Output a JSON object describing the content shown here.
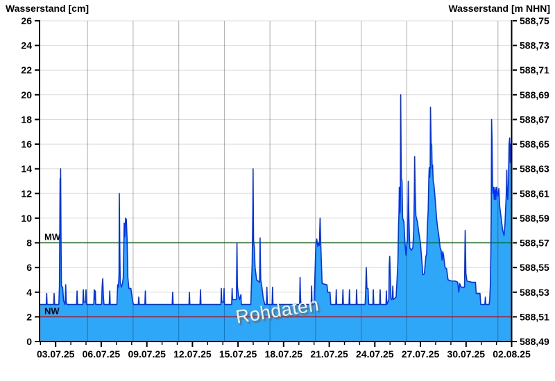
{
  "header": {
    "title_left": "Wasserstand [cm]",
    "title_right": "Wasserstand [m NHN]"
  },
  "watermark": "Rohdaten",
  "chart_data": {
    "type": "area",
    "title": "Wasserstand Rohdaten",
    "xlabel": "",
    "ylabel_left": "Wasserstand [cm]",
    "ylabel_right": "Wasserstand [m NHN]",
    "grid": true,
    "x_axis": {
      "tick_labels": [
        "03.07.25",
        "06.07.25",
        "09.07.25",
        "12.07.25",
        "15.07.25",
        "18.07.25",
        "21.07.25",
        "24.07.25",
        "27.07.25",
        "30.07.25",
        "02.08.25"
      ],
      "tick_days": [
        0,
        3,
        6,
        9,
        12,
        15,
        18,
        21,
        24,
        27,
        30
      ],
      "minor_tick_interval_days": 1,
      "range_days": [
        -1.03,
        30.0
      ],
      "gridline_days": [
        2.1,
        5.1,
        8.1,
        11.1,
        14.1,
        17.1,
        20.1,
        23.1,
        26.1,
        29.1
      ]
    },
    "y_axis_left": {
      "unit": "cm",
      "min": 0,
      "max": 26,
      "tick_step": 2,
      "tick_labels": [
        "26",
        "24",
        "22",
        "20",
        "18",
        "16",
        "14",
        "12",
        "10",
        "8",
        "6",
        "4",
        "2",
        "0"
      ]
    },
    "y_axis_right": {
      "unit": "m NHN",
      "min_m": 588.49,
      "max_m": 588.75,
      "tick_labels": [
        "588,75",
        "588,73",
        "588,71",
        "588,69",
        "588,67",
        "588,65",
        "588,63",
        "588,61",
        "588,59",
        "588,57",
        "588,55",
        "588,53",
        "588,51",
        "588,49"
      ]
    },
    "reference_lines": [
      {
        "name": "MW",
        "value_cm": 8,
        "color": "#007a00"
      },
      {
        "name": "NW",
        "value_cm": 2,
        "color": "#d40000"
      }
    ],
    "series": [
      {
        "name": "Rohdaten",
        "unit": "cm",
        "points": [
          [
            -1.03,
            3
          ],
          [
            -0.62,
            3
          ],
          [
            -0.59,
            3.9
          ],
          [
            -0.56,
            3
          ],
          [
            -0.13,
            3
          ],
          [
            -0.1,
            3.9
          ],
          [
            -0.07,
            3
          ],
          [
            0.21,
            3
          ],
          [
            0.25,
            4.5
          ],
          [
            0.29,
            13.2
          ],
          [
            0.31,
            10.5
          ],
          [
            0.33,
            14
          ],
          [
            0.35,
            9
          ],
          [
            0.38,
            4.5
          ],
          [
            0.46,
            4.4
          ],
          [
            0.52,
            3.3
          ],
          [
            0.62,
            3
          ],
          [
            0.66,
            4.6
          ],
          [
            0.7,
            3.2
          ],
          [
            0.75,
            3
          ],
          [
            1.38,
            3
          ],
          [
            1.41,
            4.1
          ],
          [
            1.44,
            3
          ],
          [
            1.79,
            3
          ],
          [
            1.82,
            4.2
          ],
          [
            1.85,
            3.2
          ],
          [
            1.96,
            3.2
          ],
          [
            2,
            4.2
          ],
          [
            2.03,
            3
          ],
          [
            2.51,
            3
          ],
          [
            2.54,
            4.2
          ],
          [
            2.57,
            3.4
          ],
          [
            2.61,
            4.1
          ],
          [
            2.64,
            3
          ],
          [
            3.02,
            3
          ],
          [
            3.06,
            4.4
          ],
          [
            3.1,
            5.1
          ],
          [
            3.14,
            3.7
          ],
          [
            3.18,
            3
          ],
          [
            3.53,
            3
          ],
          [
            3.56,
            4.1
          ],
          [
            3.59,
            3
          ],
          [
            4.03,
            3
          ],
          [
            4.08,
            4.6
          ],
          [
            4.13,
            4.4
          ],
          [
            4.17,
            5.5
          ],
          [
            4.19,
            12
          ],
          [
            4.22,
            7.5
          ],
          [
            4.25,
            4.8
          ],
          [
            4.32,
            4.4
          ],
          [
            4.4,
            4.7
          ],
          [
            4.45,
            5.2
          ],
          [
            4.51,
            9.6
          ],
          [
            4.55,
            8.5
          ],
          [
            4.6,
            10
          ],
          [
            4.65,
            9.9
          ],
          [
            4.7,
            8.3
          ],
          [
            4.75,
            5.2
          ],
          [
            4.82,
            4.3
          ],
          [
            4.95,
            4.3
          ],
          [
            5.05,
            3.4
          ],
          [
            5.12,
            3
          ],
          [
            5.44,
            3
          ],
          [
            5.47,
            3.6
          ],
          [
            5.5,
            3
          ],
          [
            5.87,
            3
          ],
          [
            5.9,
            4.1
          ],
          [
            5.93,
            3
          ],
          [
            7.67,
            3
          ],
          [
            7.7,
            4
          ],
          [
            7.73,
            3
          ],
          [
            8.77,
            3
          ],
          [
            8.8,
            4
          ],
          [
            8.83,
            3
          ],
          [
            9.5,
            3
          ],
          [
            9.53,
            4.2
          ],
          [
            9.56,
            3
          ],
          [
            10.87,
            3
          ],
          [
            10.9,
            4.3
          ],
          [
            10.93,
            3.2
          ],
          [
            11.05,
            3.2
          ],
          [
            11.08,
            4.3
          ],
          [
            11.11,
            3
          ],
          [
            11.58,
            3
          ],
          [
            11.61,
            4.3
          ],
          [
            11.64,
            3.4
          ],
          [
            11.89,
            3.4
          ],
          [
            11.93,
            8
          ],
          [
            11.96,
            4.5
          ],
          [
            12.02,
            3.8
          ],
          [
            12.1,
            3.4
          ],
          [
            12.19,
            3.8
          ],
          [
            12.22,
            3
          ],
          [
            12.84,
            3
          ],
          [
            12.88,
            4.5
          ],
          [
            12.93,
            6.3
          ],
          [
            12.97,
            10.5
          ],
          [
            12.99,
            14
          ],
          [
            13.02,
            8.2
          ],
          [
            13.07,
            7.6
          ],
          [
            13.12,
            6
          ],
          [
            13.22,
            5
          ],
          [
            13.42,
            4.8
          ],
          [
            13.45,
            8.4
          ],
          [
            13.49,
            5
          ],
          [
            13.56,
            4.5
          ],
          [
            13.66,
            3.5
          ],
          [
            13.76,
            3
          ],
          [
            13.87,
            3
          ],
          [
            13.9,
            4.4
          ],
          [
            13.93,
            3
          ],
          [
            14.24,
            3
          ],
          [
            14.27,
            4.4
          ],
          [
            14.3,
            3
          ],
          [
            16.05,
            3
          ],
          [
            16.08,
            5.2
          ],
          [
            16.11,
            3.6
          ],
          [
            16.14,
            3
          ],
          [
            16.81,
            3
          ],
          [
            16.84,
            4.5
          ],
          [
            16.87,
            3
          ],
          [
            16.99,
            3
          ],
          [
            17.04,
            4.5
          ],
          [
            17.12,
            7.9
          ],
          [
            17.18,
            8.3
          ],
          [
            17.25,
            7.7
          ],
          [
            17.3,
            8
          ],
          [
            17.35,
            7.8
          ],
          [
            17.4,
            10
          ],
          [
            17.44,
            8
          ],
          [
            17.48,
            6.5
          ],
          [
            17.53,
            4.7
          ],
          [
            17.85,
            4.6
          ],
          [
            17.9,
            4
          ],
          [
            18.05,
            4
          ],
          [
            18.1,
            3
          ],
          [
            18.43,
            3
          ],
          [
            18.46,
            4.2
          ],
          [
            18.49,
            3
          ],
          [
            18.87,
            3
          ],
          [
            18.9,
            4.2
          ],
          [
            18.93,
            3
          ],
          [
            19.3,
            3
          ],
          [
            19.33,
            4.2
          ],
          [
            19.36,
            3
          ],
          [
            19.77,
            3
          ],
          [
            19.8,
            4.2
          ],
          [
            19.83,
            3
          ],
          [
            20.36,
            3
          ],
          [
            20.4,
            4.3
          ],
          [
            20.44,
            6
          ],
          [
            20.48,
            4.3
          ],
          [
            20.55,
            4.3
          ],
          [
            20.6,
            3
          ],
          [
            20.87,
            3
          ],
          [
            20.9,
            4.2
          ],
          [
            20.93,
            3
          ],
          [
            21.32,
            3
          ],
          [
            21.35,
            4.2
          ],
          [
            21.38,
            3
          ],
          [
            21.73,
            3
          ],
          [
            21.76,
            4.1
          ],
          [
            21.79,
            3
          ],
          [
            21.92,
            3.4
          ],
          [
            21.95,
            6.2
          ],
          [
            21.98,
            6.9
          ],
          [
            22.02,
            5
          ],
          [
            22.06,
            3.5
          ],
          [
            22.1,
            3.4
          ],
          [
            22.15,
            3.5
          ],
          [
            22.18,
            4.5
          ],
          [
            22.21,
            3.4
          ],
          [
            22.3,
            3.5
          ],
          [
            22.4,
            3.6
          ],
          [
            22.46,
            5
          ],
          [
            22.52,
            6.5
          ],
          [
            22.56,
            9.5
          ],
          [
            22.59,
            10.4
          ],
          [
            22.61,
            12.5
          ],
          [
            22.63,
            10.4
          ],
          [
            22.66,
            10.5
          ],
          [
            22.68,
            12
          ],
          [
            22.7,
            20
          ],
          [
            22.74,
            13.2
          ],
          [
            22.79,
            13
          ],
          [
            22.83,
            10
          ],
          [
            22.91,
            9.7
          ],
          [
            22.98,
            8
          ],
          [
            23.05,
            7
          ],
          [
            23.1,
            7.9
          ],
          [
            23.16,
            8.2
          ],
          [
            23.2,
            13
          ],
          [
            23.24,
            10
          ],
          [
            23.3,
            7.6
          ],
          [
            23.4,
            7.4
          ],
          [
            23.5,
            7.6
          ],
          [
            23.56,
            9
          ],
          [
            23.6,
            12.2
          ],
          [
            23.62,
            15
          ],
          [
            23.65,
            12.3
          ],
          [
            23.7,
            10.2
          ],
          [
            23.8,
            9.7
          ],
          [
            23.9,
            8.8
          ],
          [
            24,
            8
          ],
          [
            24.06,
            7
          ],
          [
            24.11,
            6.2
          ],
          [
            24.16,
            5.4
          ],
          [
            24.26,
            5.5
          ],
          [
            24.31,
            6.2
          ],
          [
            24.36,
            6.9
          ],
          [
            24.41,
            7.1
          ],
          [
            24.46,
            9.4
          ],
          [
            24.51,
            10.6
          ],
          [
            24.55,
            13.2
          ],
          [
            24.58,
            14.1
          ],
          [
            24.61,
            13.3
          ],
          [
            24.64,
            14.2
          ],
          [
            24.66,
            19
          ],
          [
            24.7,
            16.1
          ],
          [
            24.74,
            15.9
          ],
          [
            24.77,
            14
          ],
          [
            24.8,
            14.3
          ],
          [
            24.84,
            13
          ],
          [
            24.89,
            12.7
          ],
          [
            24.94,
            12
          ],
          [
            25,
            11
          ],
          [
            25.06,
            10
          ],
          [
            25.12,
            9.3
          ],
          [
            25.2,
            8.7
          ],
          [
            25.3,
            7.6
          ],
          [
            25.36,
            7.4
          ],
          [
            25.42,
            6.6
          ],
          [
            25.47,
            7.3
          ],
          [
            25.52,
            7
          ],
          [
            25.62,
            6
          ],
          [
            25.72,
            5.9
          ],
          [
            25.82,
            5
          ],
          [
            26.05,
            4.9
          ],
          [
            26.3,
            4.9
          ],
          [
            26.45,
            4.8
          ],
          [
            26.52,
            4
          ],
          [
            26.58,
            4.7
          ],
          [
            26.68,
            4.4
          ],
          [
            26.9,
            4.4
          ],
          [
            26.94,
            9
          ],
          [
            26.99,
            5.5
          ],
          [
            27.06,
            4.9
          ],
          [
            27.4,
            4.8
          ],
          [
            27.62,
            4.8
          ],
          [
            27.67,
            3.9
          ],
          [
            27.92,
            3.9
          ],
          [
            27.97,
            3
          ],
          [
            28.24,
            3
          ],
          [
            28.27,
            3.6
          ],
          [
            28.3,
            3
          ],
          [
            28.52,
            3
          ],
          [
            28.56,
            3.4
          ],
          [
            28.6,
            4.6
          ],
          [
            28.63,
            7
          ],
          [
            28.66,
            10.5
          ],
          [
            28.68,
            18
          ],
          [
            28.71,
            16.5
          ],
          [
            28.74,
            13
          ],
          [
            28.77,
            12
          ],
          [
            28.81,
            12.5
          ],
          [
            28.86,
            11.5
          ],
          [
            28.91,
            12.5
          ],
          [
            28.96,
            11.5
          ],
          [
            29.01,
            12.5
          ],
          [
            29.06,
            12
          ],
          [
            29.11,
            11.8
          ],
          [
            29.16,
            12.4
          ],
          [
            29.21,
            11
          ],
          [
            29.31,
            10
          ],
          [
            29.41,
            9
          ],
          [
            29.5,
            8.6
          ],
          [
            29.56,
            9.5
          ],
          [
            29.61,
            11
          ],
          [
            29.65,
            12
          ],
          [
            29.68,
            13.9
          ],
          [
            29.71,
            12
          ],
          [
            29.75,
            11.5
          ],
          [
            29.79,
            13
          ],
          [
            29.83,
            16
          ],
          [
            29.87,
            16.5
          ],
          [
            29.9,
            14.5
          ],
          [
            29.94,
            16
          ],
          [
            29.97,
            14.6
          ]
        ]
      }
    ],
    "colors": {
      "area_fill": "#2fa7f8",
      "area_stroke": "#0031f0",
      "mw_line": "#007a00",
      "nw_line": "#d40000",
      "grid_h": "#dcdcdc",
      "grid_v": "rgba(0,0,0,0.32)",
      "axis": "#000000",
      "text": "#000000",
      "watermark_text": "#f5f5f5"
    }
  }
}
